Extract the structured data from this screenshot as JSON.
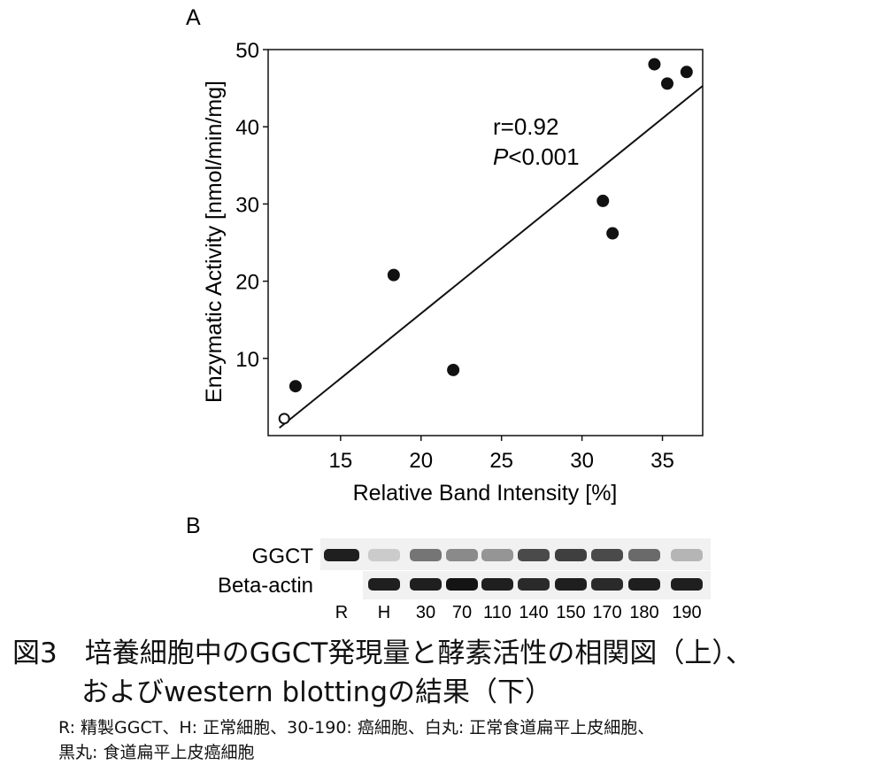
{
  "chart_data": [
    {
      "type": "scatter",
      "panel_label": "A",
      "xlabel": "Relative Band Intensity [%]",
      "ylabel": "Enzymatic Activity [nmol/min/mg]",
      "xlim": [
        10.5,
        37.5
      ],
      "ylim": [
        0,
        50
      ],
      "xticks": [
        15,
        20,
        25,
        30,
        35
      ],
      "yticks": [
        10,
        20,
        30,
        40,
        50
      ],
      "grid": false,
      "series": [
        {
          "marker": "filled",
          "points": [
            {
              "x": 12.2,
              "y": 6.4
            },
            {
              "x": 18.3,
              "y": 20.8
            },
            {
              "x": 22.0,
              "y": 8.5
            },
            {
              "x": 31.3,
              "y": 30.4
            },
            {
              "x": 31.9,
              "y": 26.2
            },
            {
              "x": 34.5,
              "y": 48.1
            },
            {
              "x": 35.3,
              "y": 45.6
            },
            {
              "x": 36.5,
              "y": 47.1
            }
          ]
        },
        {
          "marker": "open",
          "points": [
            {
              "x": 11.5,
              "y": 2.2
            }
          ]
        }
      ],
      "regression_line": {
        "x": [
          11.2,
          37.5
        ],
        "y": [
          1.0,
          45.3
        ]
      },
      "annotations": {
        "r_text": "r=0.92",
        "p_symbol": "P",
        "p_text": "<0.001"
      }
    },
    {
      "type": "blot",
      "panel_label": "B",
      "rows": [
        "GGCT",
        "Beta-actin"
      ],
      "lanes": [
        "R",
        "H",
        "30",
        "70",
        "110",
        "140",
        "150",
        "170",
        "180",
        "190"
      ],
      "intensities": {
        "GGCT": [
          0.95,
          0.15,
          0.55,
          0.45,
          0.4,
          0.75,
          0.8,
          0.75,
          0.6,
          0.25
        ],
        "Beta-actin": [
          0.0,
          0.95,
          0.95,
          1.0,
          0.95,
          0.9,
          0.95,
          0.9,
          0.95,
          0.95
        ]
      }
    }
  ],
  "caption": {
    "title_line1": "図3　培養細胞中のGGCT発現量と酵素活性の相関図（上）、",
    "title_line2": "およびwestern blottingの結果（下）",
    "note_line1": "R: 精製GGCT、H: 正常細胞、30-190: 癌細胞、白丸: 正常食道扁平上皮細胞、",
    "note_line2": "黒丸: 食道扁平上皮癌細胞"
  }
}
